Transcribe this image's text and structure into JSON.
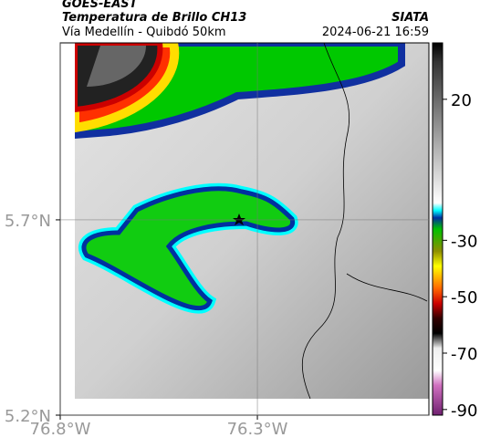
{
  "header": {
    "title": "GOES-EAST",
    "subtitle": "Temperatura de Brillo CH13",
    "route": "Vía Medellín - Quibdó 50km",
    "source": "SIATA",
    "timestamp": "2024-06-21 16:59"
  },
  "map": {
    "xlim": [
      -76.8,
      -75.865
    ],
    "ylim": [
      5.2,
      6.153
    ],
    "xticks": [
      {
        "value": -76.8,
        "label": "76.8°W"
      },
      {
        "value": -76.3,
        "label": "76.3°W"
      }
    ],
    "yticks": [
      {
        "value": 5.2,
        "label": "5.2°N"
      },
      {
        "value": 5.7,
        "label": "5.7°N"
      }
    ],
    "grid": true
  },
  "colorbar": {
    "range": [
      40,
      -92
    ],
    "ticks": [
      20,
      -30,
      -50,
      -70,
      -90
    ]
  }
}
